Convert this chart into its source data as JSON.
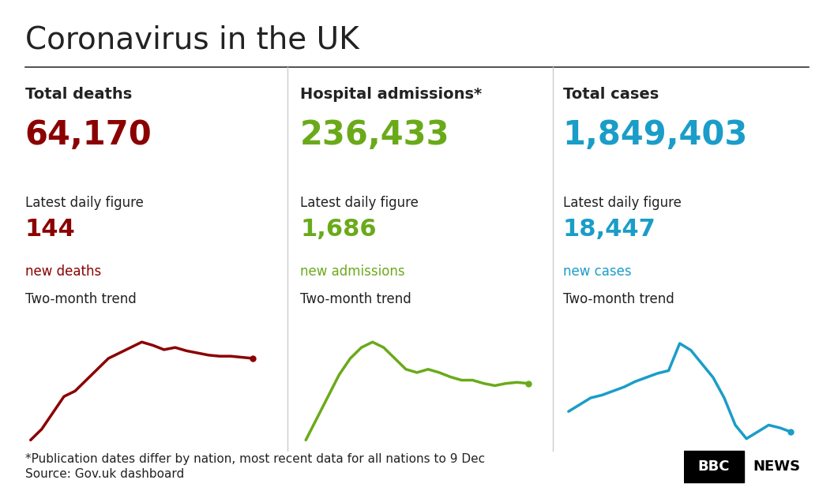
{
  "title": "Coronavirus in the UK",
  "title_fontsize": 28,
  "background_color": "#ffffff",
  "panels": [
    {
      "label": "Total deaths",
      "total": "64,170",
      "daily_label": "Latest daily figure",
      "daily_value": "144",
      "daily_text": "new deaths",
      "color": "#8B0000",
      "trend_label": "Two-month trend",
      "trend_x": [
        0,
        1,
        2,
        3,
        4,
        5,
        6,
        7,
        8,
        9,
        10,
        11,
        12,
        13,
        14,
        15,
        16,
        17,
        18,
        19,
        20
      ],
      "trend_y": [
        0.1,
        0.2,
        0.35,
        0.5,
        0.55,
        0.65,
        0.75,
        0.85,
        0.9,
        0.95,
        1.0,
        0.97,
        0.93,
        0.95,
        0.92,
        0.9,
        0.88,
        0.87,
        0.87,
        0.86,
        0.85
      ]
    },
    {
      "label": "Hospital admissions*",
      "total": "236,433",
      "daily_label": "Latest daily figure",
      "daily_value": "1,686",
      "daily_text": "new admissions",
      "color": "#6aaa1a",
      "trend_label": "Two-month trend",
      "trend_x": [
        0,
        1,
        2,
        3,
        4,
        5,
        6,
        7,
        8,
        9,
        10,
        11,
        12,
        13,
        14,
        15,
        16,
        17,
        18,
        19,
        20
      ],
      "trend_y": [
        0.1,
        0.3,
        0.5,
        0.7,
        0.85,
        0.95,
        1.0,
        0.95,
        0.85,
        0.75,
        0.72,
        0.75,
        0.72,
        0.68,
        0.65,
        0.65,
        0.62,
        0.6,
        0.62,
        0.63,
        0.62
      ]
    },
    {
      "label": "Total cases",
      "total": "1,849,403",
      "daily_label": "Latest daily figure",
      "daily_value": "18,447",
      "daily_text": "new cases",
      "color": "#1a9dc8",
      "trend_label": "Two-month trend",
      "trend_x": [
        0,
        1,
        2,
        3,
        4,
        5,
        6,
        7,
        8,
        9,
        10,
        11,
        12,
        13,
        14,
        15,
        16,
        17,
        18,
        19,
        20
      ],
      "trend_y": [
        0.5,
        0.55,
        0.6,
        0.62,
        0.65,
        0.68,
        0.72,
        0.75,
        0.78,
        0.8,
        1.0,
        0.95,
        0.85,
        0.75,
        0.6,
        0.4,
        0.3,
        0.35,
        0.4,
        0.38,
        0.35
      ]
    }
  ],
  "footnote1": "*Publication dates differ by nation, most recent data for all nations to 9 Dec",
  "footnote2": "Source: Gov.uk dashboard",
  "bbc_news_text": "BBC",
  "bbc_news_text2": "NEWS",
  "divider_color": "#cccccc",
  "text_color": "#222222",
  "footnote_fontsize": 11,
  "header_line_color": "#333333"
}
